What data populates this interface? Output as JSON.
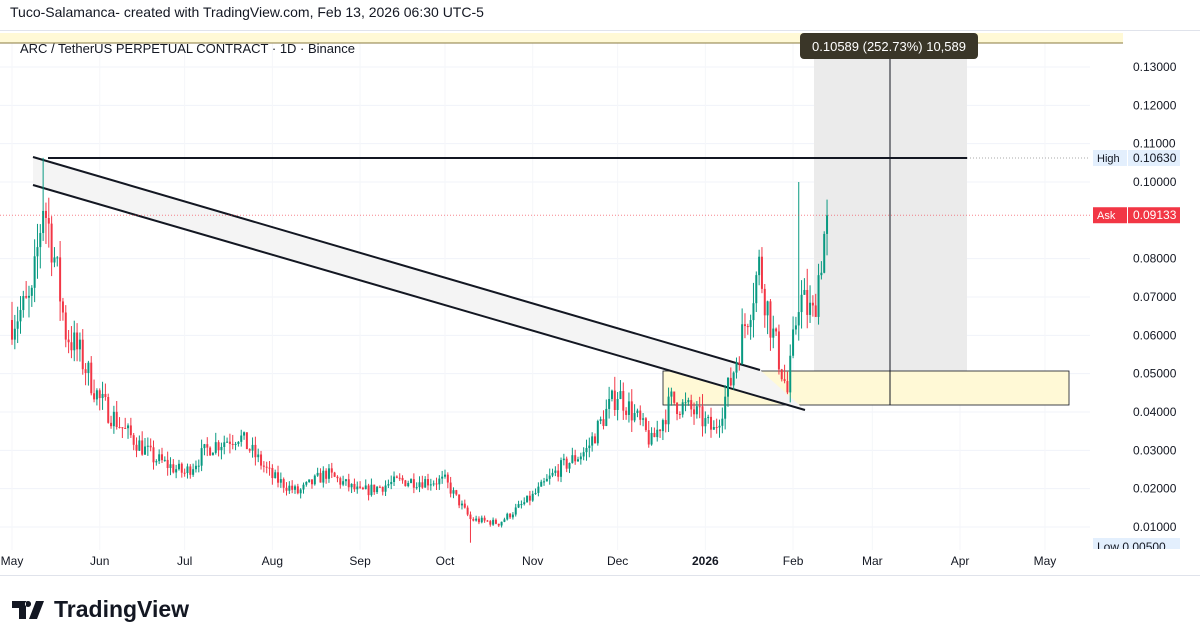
{
  "header": "Tuco-Salamanca- created with TradingView.com, Feb 13, 2026 06:30 UTC-5",
  "symbol": "ARC / TetherUS PERPETUAL CONTRACT · 1D · Binance",
  "logo": "TradingView",
  "chart_data": {
    "type": "candlestick",
    "ylim": [
      0.005,
      0.135
    ],
    "y_ticks": [
      "0.13000",
      "0.12000",
      "0.11000",
      "0.10000",
      "0.08000",
      "0.07000",
      "0.06000",
      "0.05000",
      "0.04000",
      "0.03000",
      "0.02000",
      "0.01000"
    ],
    "x_ticks": [
      "May",
      "Jun",
      "Jul",
      "Aug",
      "Sep",
      "Oct",
      "Nov",
      "Dec",
      "2026",
      "Feb",
      "Mar",
      "Apr",
      "May"
    ],
    "high_label": {
      "label": "High",
      "value": "0.10630"
    },
    "ask_label": {
      "label": "Ask",
      "value": "0.09133"
    },
    "low_label": {
      "label": "Low",
      "value": "0.00500"
    },
    "measure_tooltip": "0.10589 (252.73%) 10,589",
    "colors": {
      "up": "#089981",
      "down": "#f23645",
      "ask": "#f23645",
      "zone": "#fff9d6"
    },
    "close_path": [
      [
        "2025-05-01",
        0.064
      ],
      [
        "2025-05-08",
        0.069
      ],
      [
        "2025-05-12",
        0.095
      ],
      [
        "2025-05-15",
        0.085
      ],
      [
        "2025-05-20",
        0.061
      ],
      [
        "2025-05-25",
        0.055
      ],
      [
        "2025-06-01",
        0.043
      ],
      [
        "2025-06-10",
        0.035
      ],
      [
        "2025-06-20",
        0.028
      ],
      [
        "2025-07-01",
        0.024
      ],
      [
        "2025-07-10",
        0.031
      ],
      [
        "2025-07-20",
        0.034
      ],
      [
        "2025-08-01",
        0.023
      ],
      [
        "2025-08-10",
        0.019
      ],
      [
        "2025-08-20",
        0.024
      ],
      [
        "2025-09-01",
        0.019
      ],
      [
        "2025-09-15",
        0.022
      ],
      [
        "2025-10-01",
        0.022
      ],
      [
        "2025-10-10",
        0.012
      ],
      [
        "2025-10-20",
        0.011
      ],
      [
        "2025-11-01",
        0.018
      ],
      [
        "2025-11-10",
        0.025
      ],
      [
        "2025-11-20",
        0.03
      ],
      [
        "2025-11-27",
        0.04
      ],
      [
        "2025-12-01",
        0.045
      ],
      [
        "2025-12-08",
        0.038
      ],
      [
        "2025-12-13",
        0.032
      ],
      [
        "2025-12-20",
        0.043
      ],
      [
        "2025-12-28",
        0.04
      ],
      [
        "2026-01-04",
        0.035
      ],
      [
        "2026-01-10",
        0.048
      ],
      [
        "2026-01-15",
        0.063
      ],
      [
        "2026-01-20",
        0.078
      ],
      [
        "2026-01-25",
        0.06
      ],
      [
        "2026-01-30",
        0.045
      ],
      [
        "2026-02-03",
        0.07
      ],
      [
        "2026-02-08",
        0.065
      ],
      [
        "2026-02-13",
        0.0913
      ]
    ]
  }
}
